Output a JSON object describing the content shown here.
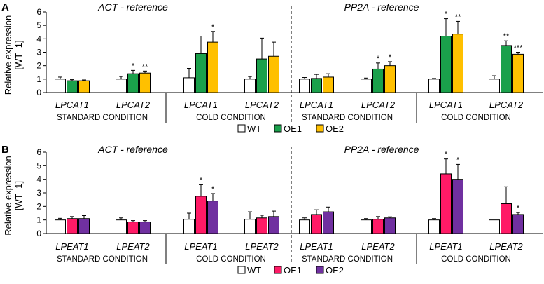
{
  "colors": {
    "WT": "#ffffff",
    "OE1_A": "#1aa04b",
    "OE2_A": "#ffc000",
    "OE1_B": "#ff1a66",
    "OE2_B": "#7030a0",
    "outline": "#000000",
    "error": "#000000"
  },
  "chart_data": [
    {
      "type": "bar",
      "panel": "A",
      "ylabel": "Relative expression [WT=1]",
      "ylim": [
        0,
        6
      ],
      "yticks": [
        0,
        1,
        2,
        3,
        4,
        5,
        6
      ],
      "series_names": [
        "WT",
        "OE1",
        "OE2"
      ],
      "series_color_keys": [
        "WT",
        "OE1_A",
        "OE2_A"
      ],
      "legend": [
        "WT",
        "OE1",
        "OE2"
      ],
      "sections": [
        {
          "title": "ACT - reference",
          "conditions": [
            "STANDARD CONDITION",
            "COLD CONDITION"
          ]
        },
        {
          "title": "PP2A - reference",
          "conditions": [
            "STANDARD CONDITION",
            "COLD CONDITION"
          ]
        }
      ],
      "groups": [
        {
          "label": "LPCAT1",
          "values": [
            1.0,
            0.88,
            0.88
          ],
          "errors": [
            0.15,
            0.08,
            0.06
          ],
          "stars": [
            "",
            "",
            ""
          ]
        },
        {
          "label": "LPCAT2",
          "values": [
            1.0,
            1.4,
            1.45
          ],
          "errors": [
            0.2,
            0.25,
            0.15
          ],
          "stars": [
            "",
            "*",
            "**"
          ]
        },
        {
          "label": "LPCAT1",
          "values": [
            1.1,
            2.9,
            3.75
          ],
          "errors": [
            0.7,
            1.3,
            0.8
          ],
          "stars": [
            "",
            "",
            "*"
          ]
        },
        {
          "label": "LPCAT2",
          "values": [
            1.0,
            2.5,
            2.7
          ],
          "errors": [
            0.2,
            1.55,
            1.05
          ],
          "stars": [
            "",
            "",
            ""
          ]
        },
        {
          "label": "LPCAT1",
          "values": [
            1.0,
            1.05,
            1.15
          ],
          "errors": [
            0.12,
            0.3,
            0.25
          ],
          "stars": [
            "",
            "",
            ""
          ]
        },
        {
          "label": "LPCAT2",
          "values": [
            1.0,
            1.75,
            2.0
          ],
          "errors": [
            0.08,
            0.45,
            0.3
          ],
          "stars": [
            "",
            "*",
            "*"
          ]
        },
        {
          "label": "LPCAT1",
          "values": [
            1.0,
            4.2,
            4.35
          ],
          "errors": [
            0.05,
            1.3,
            0.95
          ],
          "stars": [
            "",
            "*",
            "**"
          ]
        },
        {
          "label": "LPCAT2",
          "values": [
            1.0,
            3.5,
            2.85
          ],
          "errors": [
            0.25,
            0.35,
            0.15
          ],
          "stars": [
            "",
            "**",
            "***"
          ]
        }
      ]
    },
    {
      "type": "bar",
      "panel": "B",
      "ylabel": "Relative expression [WT=1]",
      "ylim": [
        0,
        6
      ],
      "yticks": [
        0,
        1,
        2,
        3,
        4,
        5,
        6
      ],
      "series_names": [
        "WT",
        "OE1",
        "OE2"
      ],
      "series_color_keys": [
        "WT",
        "OE1_B",
        "OE2_B"
      ],
      "legend": [
        "WT",
        "OE1",
        "OE2"
      ],
      "sections": [
        {
          "title": "ACT - reference",
          "conditions": [
            "STANDARD CONDITION",
            "COLD CONDITION"
          ]
        },
        {
          "title": "PP2A - reference",
          "conditions": [
            "STANDARD CONDITION",
            "COLD CONDITION"
          ]
        }
      ],
      "groups": [
        {
          "label": "LPEAT1",
          "values": [
            1.0,
            1.1,
            1.1
          ],
          "errors": [
            0.12,
            0.15,
            0.22
          ],
          "stars": [
            "",
            "",
            ""
          ]
        },
        {
          "label": "LPEAT2",
          "values": [
            1.0,
            0.85,
            0.85
          ],
          "errors": [
            0.15,
            0.1,
            0.1
          ],
          "stars": [
            "",
            "",
            ""
          ]
        },
        {
          "label": "LPEAT1",
          "values": [
            1.05,
            2.75,
            2.4
          ],
          "errors": [
            0.45,
            0.85,
            0.55
          ],
          "stars": [
            "",
            "*",
            "*"
          ]
        },
        {
          "label": "LPEAT2",
          "values": [
            1.05,
            1.15,
            1.25
          ],
          "errors": [
            0.55,
            0.2,
            0.4
          ],
          "stars": [
            "",
            "",
            ""
          ]
        },
        {
          "label": "LPEAT1",
          "values": [
            1.0,
            1.4,
            1.6
          ],
          "errors": [
            0.15,
            0.35,
            0.35
          ],
          "stars": [
            "",
            "",
            ""
          ]
        },
        {
          "label": "LPEAT2",
          "values": [
            1.0,
            1.05,
            1.15
          ],
          "errors": [
            0.1,
            0.2,
            0.08
          ],
          "stars": [
            "",
            "",
            ""
          ]
        },
        {
          "label": "LPEAT1",
          "values": [
            1.0,
            4.4,
            4.0
          ],
          "errors": [
            0.1,
            1.1,
            1.1
          ],
          "stars": [
            "",
            "*",
            "*"
          ]
        },
        {
          "label": "LPEAT2",
          "values": [
            1.0,
            2.2,
            1.4
          ],
          "errors": [
            0.0,
            1.25,
            0.15
          ],
          "stars": [
            "",
            "",
            "*"
          ]
        }
      ]
    }
  ]
}
